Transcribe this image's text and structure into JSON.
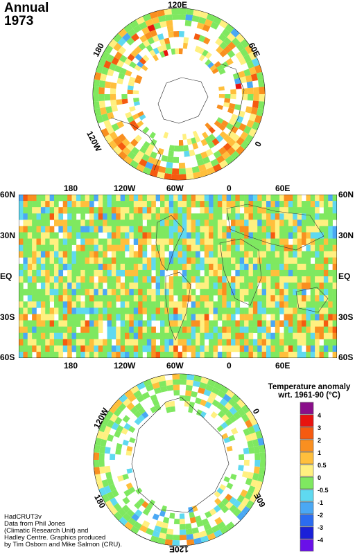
{
  "title": {
    "line1": "Annual",
    "line2": "1973"
  },
  "north_polar": {
    "labels": {
      "top": "120E",
      "upper_left": "180",
      "upper_right": "60E",
      "lower_left": "120W",
      "lower_right": "0"
    }
  },
  "map": {
    "top_lon_labels": [
      "180",
      "120W",
      "60W",
      "0",
      "60E"
    ],
    "bottom_lon_labels": [
      "180",
      "120W",
      "60W",
      "0",
      "60E"
    ],
    "lat_labels": [
      "60N",
      "30N",
      "EQ",
      "30S",
      "60S"
    ]
  },
  "south_polar": {
    "labels": {
      "upper_left": "120W",
      "upper_right": "0",
      "lower_left": "180",
      "lower_right": "60E",
      "bottom": "120E"
    }
  },
  "legend": {
    "title_line1": "Temperature anomaly",
    "title_line2": "wrt. 1961-90  (°C)",
    "labels": [
      "4",
      "3",
      "2",
      "1",
      "0.5",
      "0",
      "-0.5",
      "-1",
      "-2",
      "-3",
      "-4"
    ],
    "colors": [
      "#8a0f8a",
      "#e8130f",
      "#f55a10",
      "#f98f20",
      "#ffbf3c",
      "#fff080",
      "#7fe860",
      "#5fd9f0",
      "#4aa8f4",
      "#2b6cf0",
      "#1a20d8",
      "#6a10e8"
    ]
  },
  "credits": [
    "HadCRUT3v",
    "Data from Phil Jones",
    "(Climatic Research Unit) and",
    "Hadley Centre.  Graphics produced",
    "by Tim Osborn and Mike Salmon (CRU)."
  ]
}
